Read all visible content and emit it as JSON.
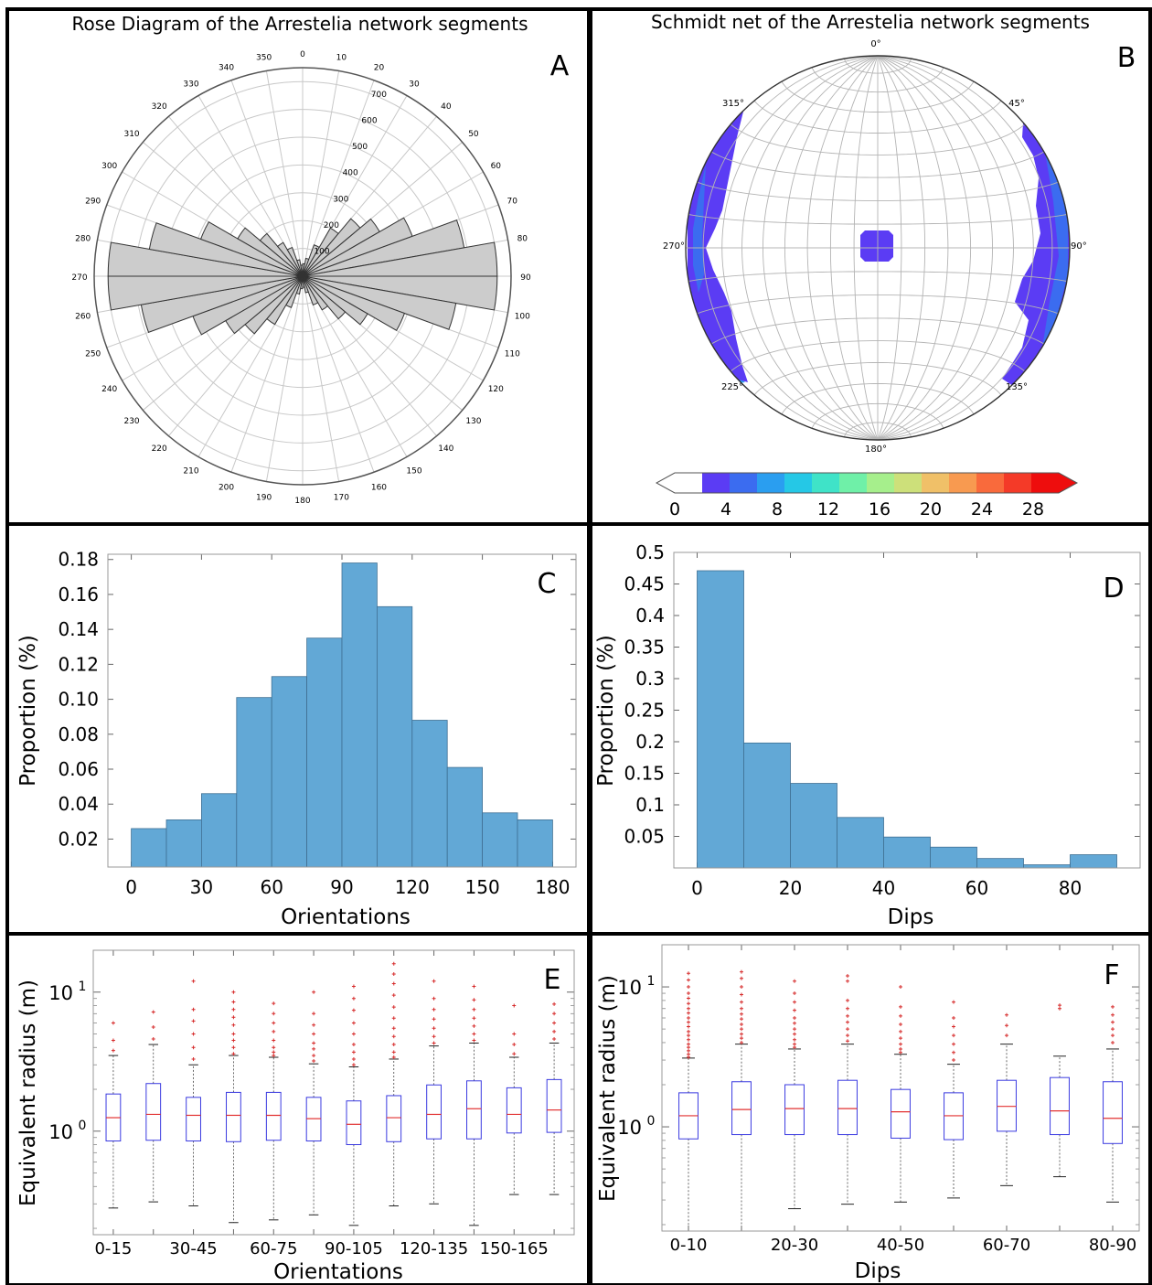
{
  "chart_data": [
    {
      "panel": "A",
      "type": "rose",
      "title": "Rose Diagram of the Arrestelia network segments",
      "angle_ticks": [
        0,
        10,
        20,
        30,
        40,
        50,
        60,
        70,
        80,
        90,
        100,
        110,
        120,
        130,
        140,
        150,
        160,
        170,
        180,
        190,
        200,
        210,
        220,
        230,
        240,
        250,
        260,
        270,
        280,
        290,
        300,
        310,
        320,
        330,
        340,
        350
      ],
      "radial_ticks": [
        100,
        200,
        300,
        400,
        500,
        600,
        700
      ],
      "rmax": 750,
      "bin_width_deg": 10,
      "bin_starts": [
        0,
        10,
        20,
        30,
        40,
        50,
        60,
        70,
        80,
        90,
        100,
        110,
        120,
        130,
        140,
        150,
        160,
        170
      ],
      "counts": [
        45,
        65,
        120,
        200,
        270,
        320,
        420,
        590,
        700,
        700,
        560,
        390,
        270,
        200,
        140,
        110,
        60,
        40
      ],
      "mirrored": true
    },
    {
      "panel": "B",
      "type": "stereonet",
      "title": "Schmidt net of the Arrestelia network segments",
      "direction_labels": [
        "0°",
        "45°",
        "90°",
        "135°",
        "180°",
        "225°",
        "270°",
        "315°"
      ],
      "colorbar": {
        "ticks": [
          0,
          4,
          8,
          12,
          16,
          20,
          24,
          28
        ],
        "min": 0,
        "max": 30,
        "colors": [
          "#ffffff",
          "#5b3cf4",
          "#3b6cf0",
          "#2a9ef0",
          "#25c8e6",
          "#3fe3c8",
          "#6ff0a8",
          "#a6ef8c",
          "#cde07a",
          "#f0c068",
          "#f89a50",
          "#f96a3c",
          "#f43a28",
          "#ee0d0d"
        ]
      },
      "density_notes": [
        "pole density concentrated near the primitive at east and west",
        "small cluster at the centre"
      ]
    },
    {
      "panel": "C",
      "type": "bar",
      "xlabel": "Orientations",
      "ylabel": "Proportion (%)",
      "bin_edges": [
        0,
        15,
        30,
        45,
        60,
        75,
        90,
        105,
        120,
        135,
        150,
        165,
        180
      ],
      "values": [
        0.026,
        0.031,
        0.046,
        0.101,
        0.113,
        0.135,
        0.178,
        0.153,
        0.088,
        0.061,
        0.035,
        0.031
      ],
      "xlim": [
        -10,
        190
      ],
      "ylim": [
        0.004,
        0.183
      ],
      "xticks": [
        0,
        30,
        60,
        90,
        120,
        150,
        180
      ],
      "yticks": [
        "0.02",
        "0.04",
        "0.06",
        "0.08",
        "0.10",
        "0.12",
        "0.14",
        "0.16",
        "0.18"
      ],
      "color": "#62a8d6"
    },
    {
      "panel": "D",
      "type": "bar",
      "xlabel": "Dips",
      "ylabel": "Proportion (%)",
      "bin_edges": [
        0,
        10,
        20,
        30,
        40,
        50,
        60,
        70,
        80,
        90
      ],
      "values": [
        0.471,
        0.198,
        0.134,
        0.08,
        0.049,
        0.033,
        0.015,
        0.005,
        0.021
      ],
      "xlim": [
        -5,
        95
      ],
      "ylim": [
        0.0,
        0.5
      ],
      "xticks": [
        0,
        20,
        40,
        60,
        80
      ],
      "yticks": [
        "0.05",
        "0.1",
        "0.15",
        "0.2",
        "0.25",
        "0.3",
        "0.35",
        "0.4",
        "0.45",
        "0.5"
      ],
      "color": "#62a8d6"
    },
    {
      "panel": "E",
      "type": "boxplot",
      "xlabel": "Orientations",
      "ylabel": "Equivalent radius (m)",
      "yscale": "log",
      "ylim": [
        0.18,
        20
      ],
      "categories": [
        "0-15",
        "15-30",
        "30-45",
        "45-60",
        "60-75",
        "75-90",
        "90-105",
        "105-120",
        "120-135",
        "135-150",
        "150-165",
        "165-180"
      ],
      "xtick_labels_shown": [
        "0-15",
        "30-45",
        "60-75",
        "90-105",
        "120-135",
        "150-165"
      ],
      "boxes": [
        {
          "whislo": 0.28,
          "q1": 0.85,
          "med": 1.25,
          "q3": 1.85,
          "whishi": 3.5,
          "fliers": [
            3.8,
            4.5,
            6.0
          ]
        },
        {
          "whislo": 0.31,
          "q1": 0.86,
          "med": 1.32,
          "q3": 2.2,
          "whishi": 4.2,
          "fliers": [
            4.6,
            5.6,
            7.2
          ]
        },
        {
          "whislo": 0.29,
          "q1": 0.85,
          "med": 1.3,
          "q3": 1.75,
          "whishi": 3.0,
          "fliers": [
            3.3,
            4.0,
            5.0,
            6.2,
            7.5,
            12.0
          ]
        },
        {
          "whislo": 0.22,
          "q1": 0.84,
          "med": 1.3,
          "q3": 1.9,
          "whishi": 3.5,
          "fliers": [
            3.6,
            4.0,
            4.5,
            5.0,
            5.8,
            6.6,
            7.5,
            8.5,
            10.0
          ]
        },
        {
          "whislo": 0.23,
          "q1": 0.86,
          "med": 1.3,
          "q3": 1.9,
          "whishi": 3.4,
          "fliers": [
            3.5,
            3.7,
            4.0,
            4.5,
            5.2,
            6.0,
            7.0,
            8.3
          ]
        },
        {
          "whislo": 0.25,
          "q1": 0.85,
          "med": 1.23,
          "q3": 1.75,
          "whishi": 3.05,
          "fliers": [
            3.2,
            3.5,
            3.9,
            4.3,
            5.0,
            5.8,
            7.0,
            10.0
          ]
        },
        {
          "whislo": 0.21,
          "q1": 0.8,
          "med": 1.12,
          "q3": 1.65,
          "whishi": 2.9,
          "fliers": [
            3.0,
            3.3,
            3.7,
            4.2,
            5.0,
            6.0,
            7.4,
            9.0,
            11.0
          ]
        },
        {
          "whislo": 0.29,
          "q1": 0.84,
          "med": 1.25,
          "q3": 1.8,
          "whishi": 3.3,
          "fliers": [
            3.4,
            3.7,
            4.2,
            4.8,
            5.5,
            6.5,
            7.8,
            9.5,
            11.5,
            13.5,
            16.0
          ]
        },
        {
          "whislo": 0.3,
          "q1": 0.88,
          "med": 1.32,
          "q3": 2.15,
          "whishi": 4.1,
          "fliers": [
            4.3,
            4.8,
            5.5,
            6.4,
            7.5,
            9.0,
            12.0
          ]
        },
        {
          "whislo": 0.21,
          "q1": 0.88,
          "med": 1.45,
          "q3": 2.3,
          "whishi": 4.3,
          "fliers": [
            4.5,
            5.0,
            5.7,
            6.5,
            7.5,
            8.8,
            11.0
          ]
        },
        {
          "whislo": 0.35,
          "q1": 0.97,
          "med": 1.32,
          "q3": 2.05,
          "whishi": 3.4,
          "fliers": [
            3.6,
            4.2,
            5.0,
            8.0
          ]
        },
        {
          "whislo": 0.35,
          "q1": 0.98,
          "med": 1.42,
          "q3": 2.35,
          "whishi": 4.3,
          "fliers": [
            4.6,
            5.2,
            6.0,
            7.0,
            8.2
          ]
        }
      ],
      "box_color": "#3a3ae0",
      "median_color": "#e23232",
      "flier_color": "#d62a2a"
    },
    {
      "panel": "F",
      "type": "boxplot",
      "xlabel": "Dips",
      "ylabel": "Equivalent radius (m)",
      "yscale": "log",
      "ylim": [
        0.18,
        20
      ],
      "categories": [
        "0-10",
        "10-20",
        "20-30",
        "30-40",
        "40-50",
        "50-60",
        "60-70",
        "70-80",
        "80-90"
      ],
      "xtick_labels_shown": [
        "0-10",
        "20-30",
        "40-50",
        "60-70",
        "80-90"
      ],
      "boxes": [
        {
          "whislo": 0.18,
          "q1": 0.82,
          "med": 1.2,
          "q3": 1.75,
          "whishi": 3.1,
          "fliers": [
            3.15,
            3.3,
            3.5,
            3.7,
            3.9,
            4.2,
            4.5,
            4.8,
            5.2,
            5.6,
            6.0,
            6.5,
            7.0,
            7.6,
            8.3,
            9.0,
            10.0,
            11.2,
            12.5
          ]
        },
        {
          "whislo": 0.18,
          "q1": 0.88,
          "med": 1.33,
          "q3": 2.1,
          "whishi": 3.9,
          "fliers": [
            4.0,
            4.3,
            4.6,
            5.0,
            5.4,
            5.9,
            6.4,
            7.0,
            7.8,
            8.8,
            10.0,
            11.5,
            12.8
          ]
        },
        {
          "whislo": 0.26,
          "q1": 0.88,
          "med": 1.35,
          "q3": 2.0,
          "whishi": 3.6,
          "fliers": [
            3.7,
            3.9,
            4.2,
            4.6,
            5.0,
            5.5,
            6.0,
            6.8,
            7.8,
            9.0,
            11.0
          ]
        },
        {
          "whislo": 0.28,
          "q1": 0.88,
          "med": 1.35,
          "q3": 2.15,
          "whishi": 3.9,
          "fliers": [
            4.1,
            4.5,
            5.0,
            5.6,
            6.2,
            7.0,
            8.0,
            11.0,
            12.0
          ]
        },
        {
          "whislo": 0.29,
          "q1": 0.83,
          "med": 1.28,
          "q3": 1.85,
          "whishi": 3.3,
          "fliers": [
            3.4,
            3.6,
            3.9,
            4.3,
            4.8,
            5.4,
            6.2,
            7.2,
            10.0
          ]
        },
        {
          "whislo": 0.31,
          "q1": 0.81,
          "med": 1.2,
          "q3": 1.75,
          "whishi": 2.8,
          "fliers": [
            3.0,
            3.4,
            3.9,
            4.5,
            5.2,
            6.0,
            7.8
          ]
        },
        {
          "whislo": 0.38,
          "q1": 0.93,
          "med": 1.4,
          "q3": 2.15,
          "whishi": 3.9,
          "fliers": [
            4.5,
            5.3,
            6.3
          ]
        },
        {
          "whislo": 0.44,
          "q1": 0.88,
          "med": 1.3,
          "q3": 2.25,
          "whishi": 3.2,
          "fliers": [
            7.0,
            7.4
          ]
        },
        {
          "whislo": 0.29,
          "q1": 0.76,
          "med": 1.15,
          "q3": 2.1,
          "whishi": 3.6,
          "fliers": [
            4.0,
            4.5,
            5.0,
            5.6,
            6.3,
            7.2
          ]
        }
      ],
      "box_color": "#3a3ae0",
      "median_color": "#e23232",
      "flier_color": "#d62a2a"
    }
  ],
  "panel_letters": [
    "A",
    "B",
    "C",
    "D",
    "E",
    "F"
  ]
}
